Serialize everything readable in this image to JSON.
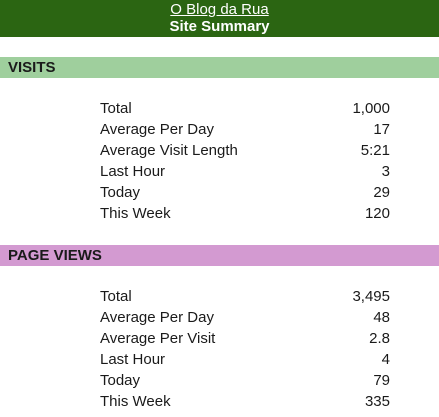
{
  "header": {
    "blog_title": "O Blog da Rua",
    "subtitle": "Site Summary",
    "background_color": "#2b6512"
  },
  "sections": {
    "visits": {
      "title": "VISITS",
      "bar_color": "#9fcf9d",
      "rows": [
        {
          "label": "Total",
          "value": "1,000"
        },
        {
          "label": "Average Per Day",
          "value": "17"
        },
        {
          "label": "Average Visit Length",
          "value": "5:21"
        },
        {
          "label": "Last Hour",
          "value": "3"
        },
        {
          "label": "Today",
          "value": "29"
        },
        {
          "label": "This Week",
          "value": "120"
        }
      ]
    },
    "page_views": {
      "title": "PAGE VIEWS",
      "bar_color": "#d39ad1",
      "rows": [
        {
          "label": "Total",
          "value": "3,495"
        },
        {
          "label": "Average Per Day",
          "value": "48"
        },
        {
          "label": "Average Per Visit",
          "value": "2.8"
        },
        {
          "label": "Last Hour",
          "value": "4"
        },
        {
          "label": "Today",
          "value": "79"
        },
        {
          "label": "This Week",
          "value": "335"
        }
      ]
    }
  }
}
